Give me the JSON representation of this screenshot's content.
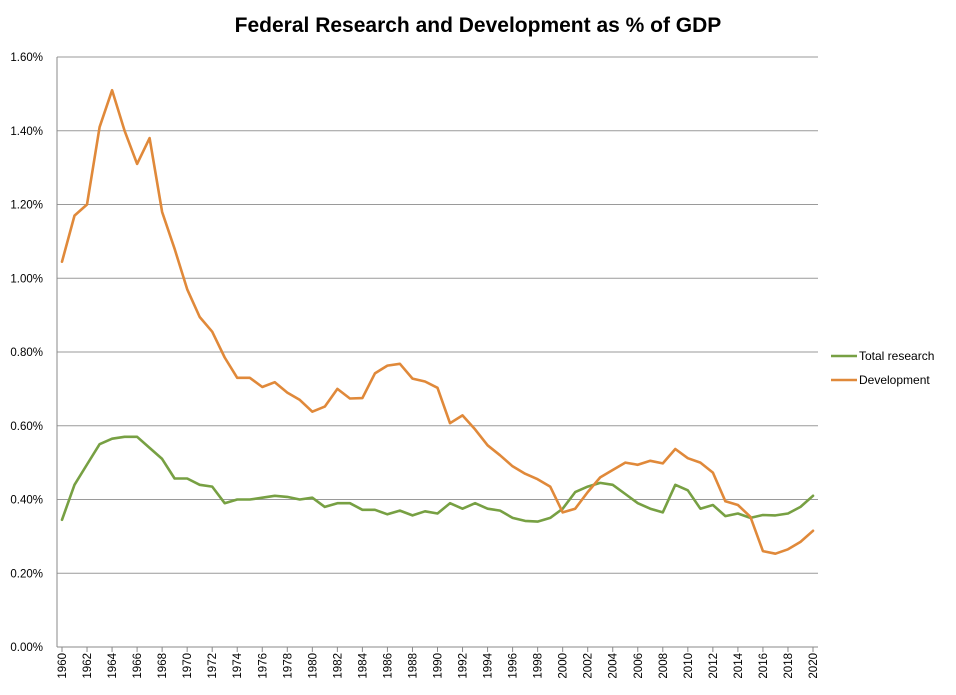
{
  "chart_data": {
    "type": "line",
    "title": "Federal Research and Development as % of GDP",
    "xlabel": "",
    "ylabel": "",
    "x": [
      1960,
      1961,
      1962,
      1963,
      1964,
      1965,
      1966,
      1967,
      1968,
      1969,
      1970,
      1971,
      1972,
      1973,
      1974,
      1975,
      1976,
      1977,
      1978,
      1979,
      1980,
      1981,
      1982,
      1983,
      1984,
      1985,
      1986,
      1987,
      1988,
      1989,
      1990,
      1991,
      1992,
      1993,
      1994,
      1995,
      1996,
      1997,
      1998,
      1999,
      2000,
      2001,
      2002,
      2003,
      2004,
      2005,
      2006,
      2007,
      2008,
      2009,
      2010,
      2011,
      2012,
      2013,
      2014,
      2015,
      2016,
      2017,
      2018,
      2019,
      2020
    ],
    "x_tick_labels": [
      "1960",
      "1962",
      "1964",
      "1966",
      "1968",
      "1970",
      "1972",
      "1974",
      "1976",
      "1978",
      "1980",
      "1982",
      "1984",
      "1986",
      "1988",
      "1990",
      "1992",
      "1994",
      "1996",
      "1998",
      "2000",
      "2002",
      "2004",
      "2006",
      "2008",
      "2010",
      "2012",
      "2014",
      "2016",
      "2018",
      "2020"
    ],
    "y_tick_labels": [
      "0.00%",
      "0.20%",
      "0.40%",
      "0.60%",
      "0.80%",
      "1.00%",
      "1.20%",
      "1.40%",
      "1.60%"
    ],
    "ylim": [
      0,
      1.6
    ],
    "y_unit": "%",
    "grid": true,
    "legend_position": "right",
    "series": [
      {
        "name": "Total research",
        "color": "#77a043",
        "values": [
          0.345,
          0.44,
          0.495,
          0.55,
          0.565,
          0.57,
          0.57,
          0.54,
          0.51,
          0.457,
          0.457,
          0.44,
          0.435,
          0.39,
          0.4,
          0.4,
          0.405,
          0.41,
          0.407,
          0.4,
          0.405,
          0.38,
          0.39,
          0.39,
          0.372,
          0.372,
          0.36,
          0.37,
          0.357,
          0.368,
          0.362,
          0.39,
          0.375,
          0.39,
          0.375,
          0.37,
          0.35,
          0.342,
          0.34,
          0.35,
          0.375,
          0.42,
          0.435,
          0.445,
          0.44,
          0.415,
          0.39,
          0.375,
          0.365,
          0.44,
          0.425,
          0.375,
          0.385,
          0.355,
          0.362,
          0.35,
          0.358,
          0.357,
          0.362,
          0.38,
          0.41
        ]
      },
      {
        "name": "Development",
        "color": "#e0893a",
        "values": [
          1.045,
          1.17,
          1.2,
          1.41,
          1.51,
          1.4,
          1.31,
          1.38,
          1.18,
          1.08,
          0.97,
          0.895,
          0.855,
          0.785,
          0.73,
          0.73,
          0.705,
          0.718,
          0.69,
          0.67,
          0.638,
          0.652,
          0.7,
          0.674,
          0.675,
          0.742,
          0.763,
          0.768,
          0.728,
          0.72,
          0.703,
          0.607,
          0.628,
          0.59,
          0.547,
          0.52,
          0.49,
          0.47,
          0.455,
          0.435,
          0.365,
          0.375,
          0.42,
          0.46,
          0.48,
          0.5,
          0.494,
          0.505,
          0.498,
          0.537,
          0.512,
          0.5,
          0.473,
          0.395,
          0.385,
          0.353,
          0.26,
          0.253,
          0.265,
          0.285,
          0.315
        ]
      }
    ]
  }
}
